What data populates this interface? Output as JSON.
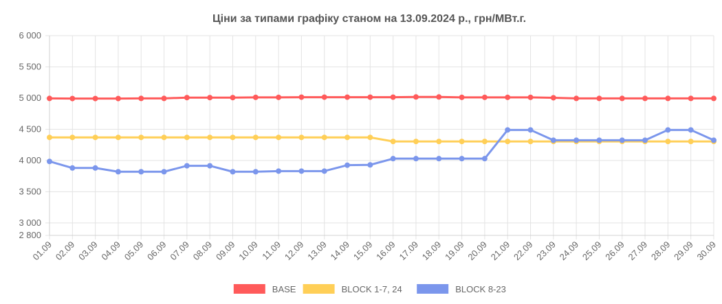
{
  "chart_data": {
    "type": "line",
    "title": "Ціни за типами графіку станом на 13.09.2024 р., грн/МВт.г.",
    "xlabel": "",
    "ylabel": "",
    "ylim": [
      2800,
      6000
    ],
    "yticks": [
      2800,
      3000,
      3500,
      4000,
      4500,
      5000,
      5500,
      6000
    ],
    "ytick_labels": [
      "2 800",
      "3 000",
      "3 500",
      "4 000",
      "4 500",
      "5 000",
      "5 500",
      "6 000"
    ],
    "categories": [
      "01.09",
      "02.09",
      "03.09",
      "04.09",
      "05.09",
      "06.09",
      "07.09",
      "08.09",
      "09.09",
      "10.09",
      "11.09",
      "12.09",
      "13.09",
      "14.09",
      "15.09",
      "16.09",
      "17.09",
      "18.09",
      "19.09",
      "20.09",
      "21.09",
      "22.09",
      "23.09",
      "24.09",
      "25.09",
      "26.09",
      "27.09",
      "28.09",
      "29.09",
      "30.09"
    ],
    "grid": true,
    "legend_position": "bottom",
    "series": [
      {
        "name": "BASE",
        "color": "#ff5a5a",
        "values": [
          4995,
          4993,
          4993,
          4993,
          4995,
          4995,
          5008,
          5008,
          5008,
          5012,
          5012,
          5015,
          5015,
          5015,
          5015,
          5015,
          5018,
          5018,
          5012,
          5012,
          5012,
          5012,
          5005,
          4995,
          4995,
          4995,
          4995,
          4995,
          4995,
          4995
        ]
      },
      {
        "name": "BLOCK 1-7, 24",
        "color": "#ffcf57",
        "values": [
          4370,
          4370,
          4370,
          4370,
          4370,
          4370,
          4370,
          4370,
          4370,
          4370,
          4370,
          4370,
          4370,
          4370,
          4370,
          4305,
          4305,
          4305,
          4305,
          4305,
          4305,
          4305,
          4305,
          4305,
          4305,
          4305,
          4305,
          4305,
          4305,
          4305
        ]
      },
      {
        "name": "BLOCK 8-23",
        "color": "#7b96ec",
        "values": [
          3985,
          3880,
          3880,
          3820,
          3820,
          3820,
          3915,
          3915,
          3820,
          3820,
          3830,
          3830,
          3830,
          3925,
          3930,
          4030,
          4030,
          4030,
          4030,
          4030,
          4490,
          4490,
          4325,
          4325,
          4325,
          4325,
          4325,
          4490,
          4490,
          4325
        ]
      }
    ]
  }
}
